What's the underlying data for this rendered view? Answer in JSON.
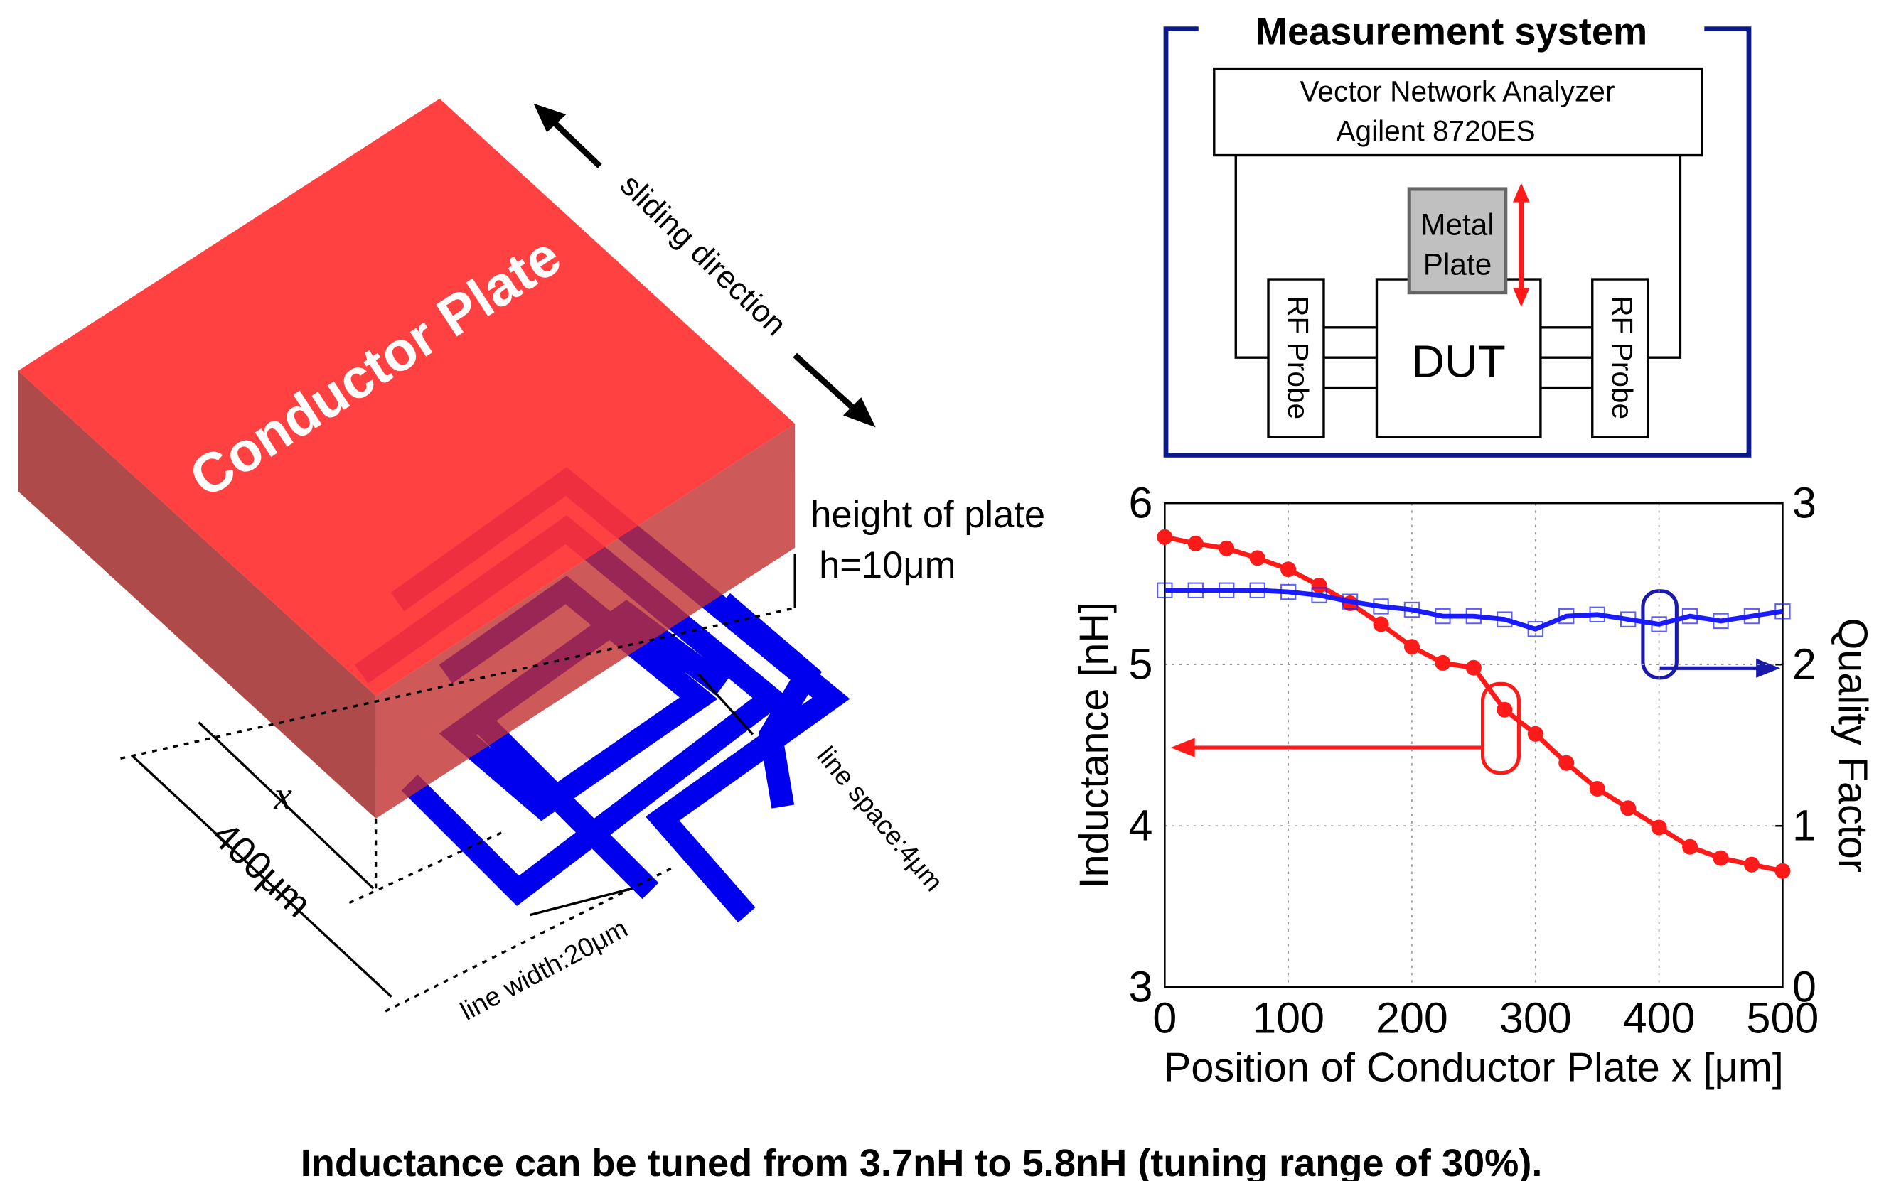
{
  "diagram": {
    "plate_label": "Conductor Plate",
    "sliding_direction": "sliding direction",
    "plate_height_label": "height of plate",
    "plate_height": "h=10μm",
    "x_label": "x",
    "length": "400μm",
    "line_width": "line width:20μm",
    "line_space": "line space:4μm"
  },
  "measurement_system": {
    "title": "Measurement system",
    "analyzer": [
      "Vector Network Analyzer",
      "Agilent 8720ES"
    ],
    "plate": [
      "Metal",
      "Plate"
    ],
    "probes": [
      "RF Probe",
      "RF Probe"
    ],
    "dut": "DUT"
  },
  "chart_data": {
    "type": "line",
    "x": [
      0,
      25,
      50,
      75,
      100,
      125,
      150,
      175,
      200,
      225,
      250,
      275,
      300,
      325,
      350,
      375,
      400,
      425,
      450,
      475,
      500
    ],
    "series": [
      {
        "color": "#ff1a1a",
        "marker": "circle",
        "values": [
          5.79,
          5.75,
          5.72,
          5.66,
          5.59,
          5.49,
          5.38,
          5.25,
          5.11,
          5.01,
          4.98,
          4.72,
          4.57,
          4.39,
          4.23,
          4.11,
          3.99,
          3.87,
          3.8,
          3.76,
          3.72
        ]
      },
      {
        "color": "#1a1aff",
        "marker": "square",
        "axis": "y2",
        "values": [
          2.46,
          2.46,
          2.46,
          2.46,
          2.45,
          2.43,
          2.39,
          2.36,
          2.34,
          2.3,
          2.3,
          2.28,
          2.22,
          2.3,
          2.31,
          2.28,
          2.25,
          2.3,
          2.27,
          2.3,
          2.33
        ]
      }
    ],
    "xlabel": "Position of Conductor Plate x [μm]",
    "ylabel": "Inductance [nH]",
    "y2label": "Quality Factor",
    "xlim": [
      0,
      500
    ],
    "xticks": [
      0,
      100,
      200,
      300,
      400,
      500
    ],
    "ylim": [
      3,
      6
    ],
    "yticks": [
      3,
      4,
      5,
      6
    ],
    "y2lim": [
      0,
      3
    ],
    "y2ticks": [
      0,
      1,
      2,
      3
    ],
    "grid": true
  },
  "caption": "Inductance can be tuned from 3.7nH to 5.8nH (tuning range of 30%)."
}
